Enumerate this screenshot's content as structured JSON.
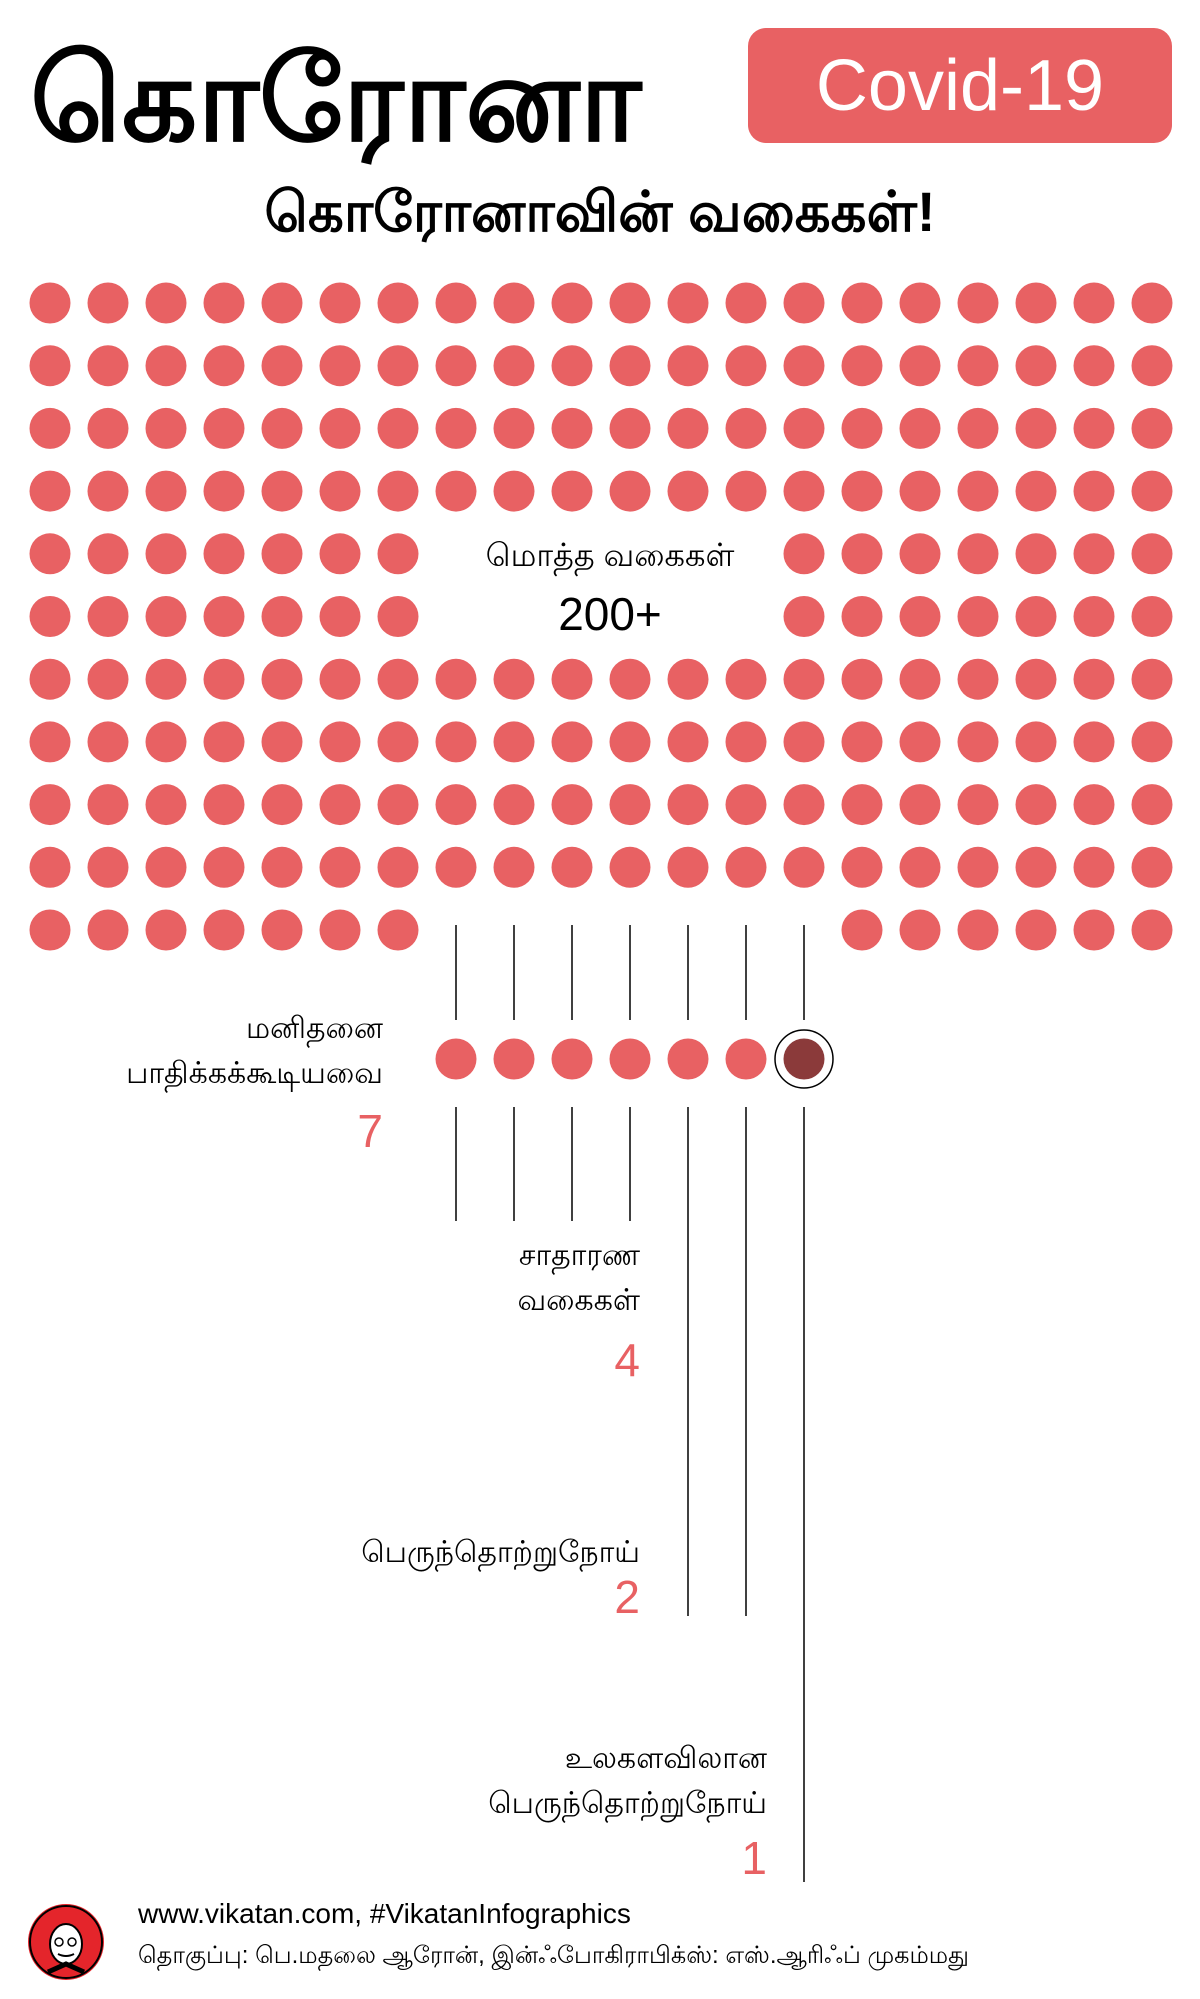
{
  "header": {
    "title": "கொரோனா",
    "badge": "Covid-19",
    "subtitle": "கொரோனாவின் வகைகள்!"
  },
  "colors": {
    "accent": "#e86163",
    "highlight": "#8b3a3a",
    "text": "#000000"
  },
  "total": {
    "label": "மொத்த வகைகள்",
    "value": "200+"
  },
  "categories": [
    {
      "label_lines": [
        "மனிதனை",
        "பாதிக்கக்கூடியவை"
      ],
      "count": "7"
    },
    {
      "label_lines": [
        "சாதாரண",
        "வகைகள்"
      ],
      "count": "4"
    },
    {
      "label_lines": [
        "பெருந்தொற்றுநோய்"
      ],
      "count": "2"
    },
    {
      "label_lines": [
        "உலகளவிலான",
        "பெருந்தொற்றுநோய்"
      ],
      "count": "1"
    }
  ],
  "footer": {
    "logo_icon": "vikatan-logo-icon",
    "url": "www.vikatan.com, #VikatanInfographics",
    "credit": "தொகுப்பு: பெ.மதலை ஆரோன், இன்ஃபோகிராபிக்ஸ்: எஸ்.ஆரிஃப் முகம்மது"
  }
}
